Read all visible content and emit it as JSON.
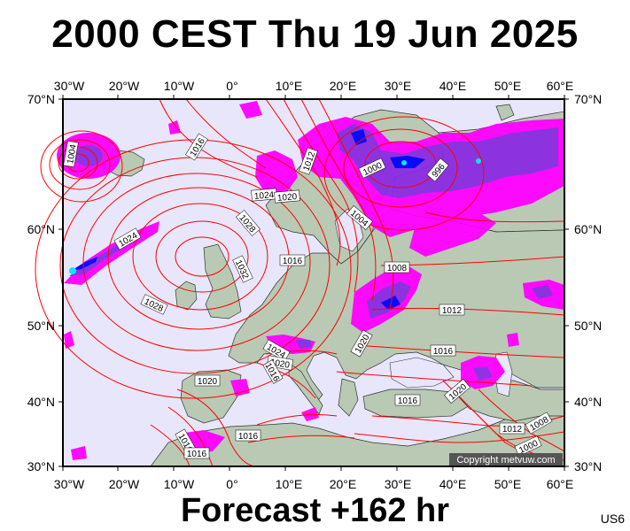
{
  "title": "2000 CEST Thu 19 Jun 2025",
  "footer": "Forecast +162 hr",
  "code": "US6",
  "copyright": "Copyright metvuw.com",
  "axes": {
    "top": [
      "30°W",
      "20°W",
      "10°W",
      "0°",
      "10°E",
      "20°E",
      "30°E",
      "40°E",
      "50°E",
      "60°E"
    ],
    "bottom": [
      "30°W",
      "20°W",
      "10°W",
      "0°",
      "10°E",
      "20°E",
      "30°E",
      "40°E",
      "50°E",
      "60°E"
    ],
    "left": [
      "70°N",
      "60°N",
      "50°N",
      "40°N",
      "30°N"
    ],
    "right": [
      "70°N",
      "60°N",
      "50°N",
      "40°N",
      "30°N"
    ]
  },
  "isobar_labels": [
    "1004",
    "1016",
    "1012",
    "1000",
    "996",
    "1024",
    "1020",
    "1028",
    "1004",
    "1024",
    "1016",
    "1032",
    "1008",
    "1028",
    "1012",
    "1020",
    "1016",
    "1024",
    "1020",
    "1016",
    "1020",
    "1012",
    "1008",
    "1016",
    "1016",
    "1000",
    "1016",
    "1016",
    "1020"
  ],
  "colors": {
    "ocean": "#e8e6fb",
    "land": "#b9c9b4",
    "isobar": "#ff0000",
    "precip_light": "#ff00ff",
    "precip_mid": "#8a2be2",
    "precip_heavy": "#0000ff",
    "precip_extreme": "#00e5ff"
  }
}
